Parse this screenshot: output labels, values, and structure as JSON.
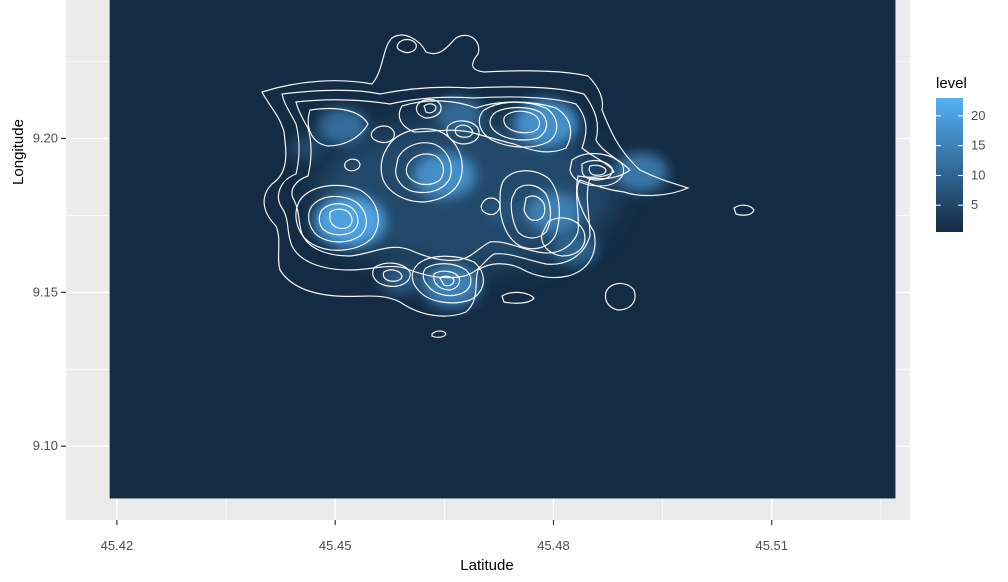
{
  "chart_data": {
    "type": "heatmap",
    "subtype": "2d-density-with-contours",
    "xlabel": "Latitude",
    "ylabel": "Longitude",
    "x_ticks": [
      45.42,
      45.45,
      45.48,
      45.51
    ],
    "x_tick_labels": [
      "45.42",
      "45.45",
      "45.48",
      "45.51"
    ],
    "y_ticks": [
      9.1,
      9.15,
      9.2
    ],
    "y_tick_labels": [
      "9.10",
      "9.15",
      "9.20"
    ],
    "xlim": [
      45.413,
      45.529
    ],
    "ylim": [
      9.076,
      9.245
    ],
    "fill_range": [
      45.419,
      45.527,
      9.083,
      9.245
    ],
    "grid": true,
    "colors": {
      "panel_background": "#ebebeb",
      "grid": "#ffffff",
      "low": "#132b43",
      "high": "#56b1f7",
      "contour": "#ffffff"
    },
    "legend": {
      "title": "level",
      "position": "right",
      "range": [
        0.5,
        23
      ],
      "ticks": [
        5,
        10,
        15,
        20
      ],
      "tick_labels": [
        "5",
        "10",
        "15",
        "20"
      ]
    },
    "density_peaks": [
      {
        "x": 45.465,
        "y": 9.188,
        "level": 19
      },
      {
        "x": 45.452,
        "y": 9.173,
        "level": 23
      },
      {
        "x": 45.479,
        "y": 9.205,
        "level": 20
      },
      {
        "x": 45.48,
        "y": 9.176,
        "level": 16
      },
      {
        "x": 45.466,
        "y": 9.152,
        "level": 17
      },
      {
        "x": 45.492,
        "y": 9.189,
        "level": 15
      },
      {
        "x": 45.451,
        "y": 9.204,
        "level": 13
      },
      {
        "x": 45.467,
        "y": 9.208,
        "level": 12
      },
      {
        "x": 45.483,
        "y": 9.164,
        "level": 11
      },
      {
        "x": 45.459,
        "y": 9.154,
        "level": 9
      },
      {
        "x": 45.473,
        "y": 9.176,
        "level": 7
      },
      {
        "x": 45.446,
        "y": 9.197,
        "level": 6
      }
    ]
  }
}
